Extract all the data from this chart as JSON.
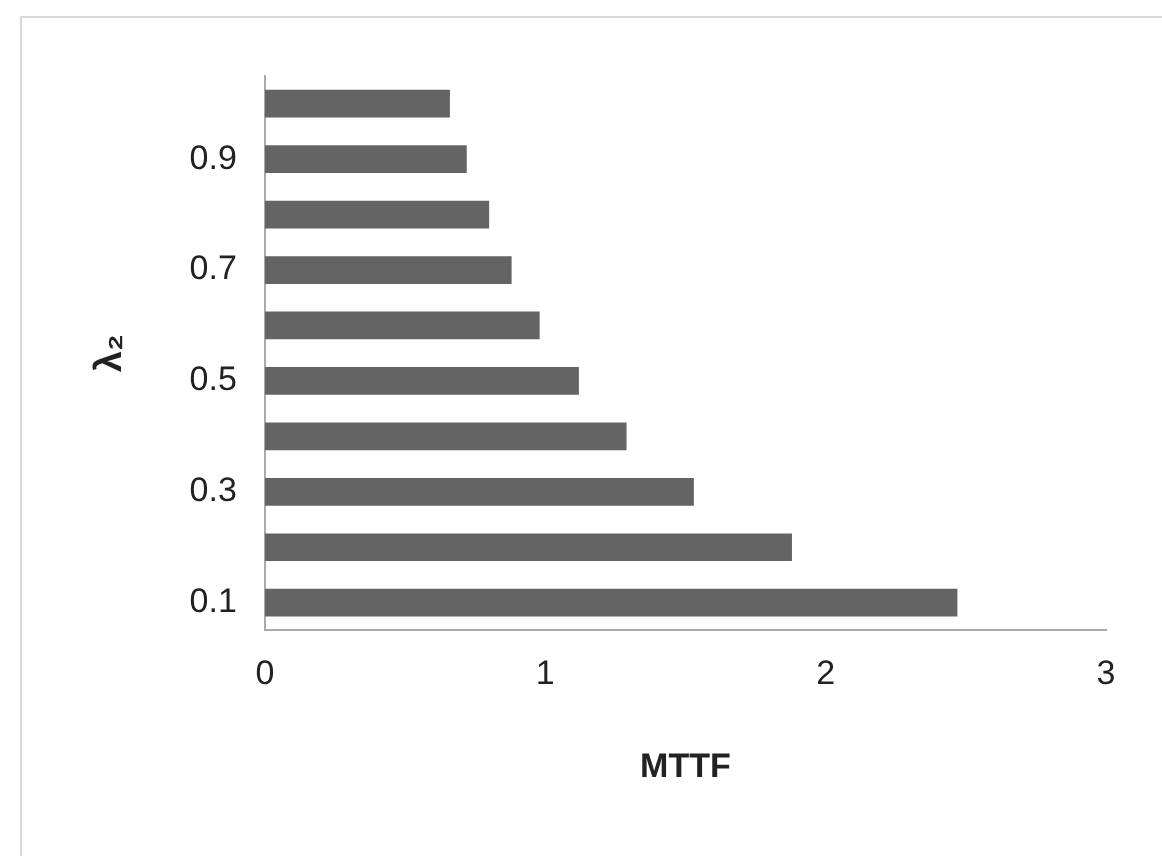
{
  "chart_data": {
    "type": "bar",
    "orientation": "horizontal",
    "xlabel": "MTTF",
    "ylabel": "λ₂",
    "categories": [
      null,
      "0.9",
      null,
      "0.7",
      null,
      "0.5",
      null,
      "0.3",
      null,
      "0.1"
    ],
    "values": [
      0.66,
      0.72,
      0.8,
      0.88,
      0.98,
      1.12,
      1.29,
      1.53,
      1.88,
      2.47
    ],
    "color": "#646464",
    "xlim": [
      0,
      3
    ],
    "xticks": [
      0,
      1,
      2,
      3
    ],
    "grid": false,
    "legend": false
  }
}
